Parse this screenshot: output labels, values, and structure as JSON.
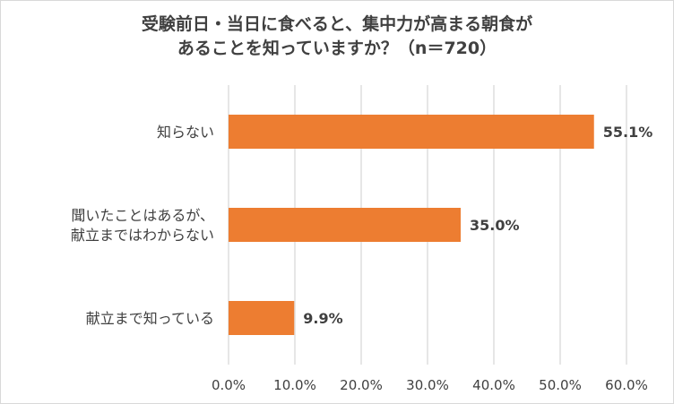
{
  "chart_data": {
    "type": "bar",
    "orientation": "horizontal",
    "title_lines": [
      "受験前日・当日に食べると、集中力が高まる朝食が",
      "あることを知っていますか？（n＝720）"
    ],
    "categories": [
      [
        "知らない"
      ],
      [
        "聞いたことはあるが、",
        "献立まではわからない"
      ],
      [
        "献立まで知っている"
      ]
    ],
    "values": [
      55.1,
      35.0,
      9.9
    ],
    "data_labels": [
      "55.1%",
      "35.0%",
      "9.9%"
    ],
    "xlim": [
      0,
      60
    ],
    "ticks": [
      0,
      10,
      20,
      30,
      40,
      50,
      60
    ],
    "tick_labels": [
      "0.0%",
      "10.0%",
      "20.0%",
      "30.0%",
      "40.0%",
      "50.0%",
      "60.0%"
    ],
    "grid": true,
    "legend": "none",
    "bar_color": "#ed7d31",
    "grid_color": "#d9d9d9",
    "text_color": "#404040"
  }
}
